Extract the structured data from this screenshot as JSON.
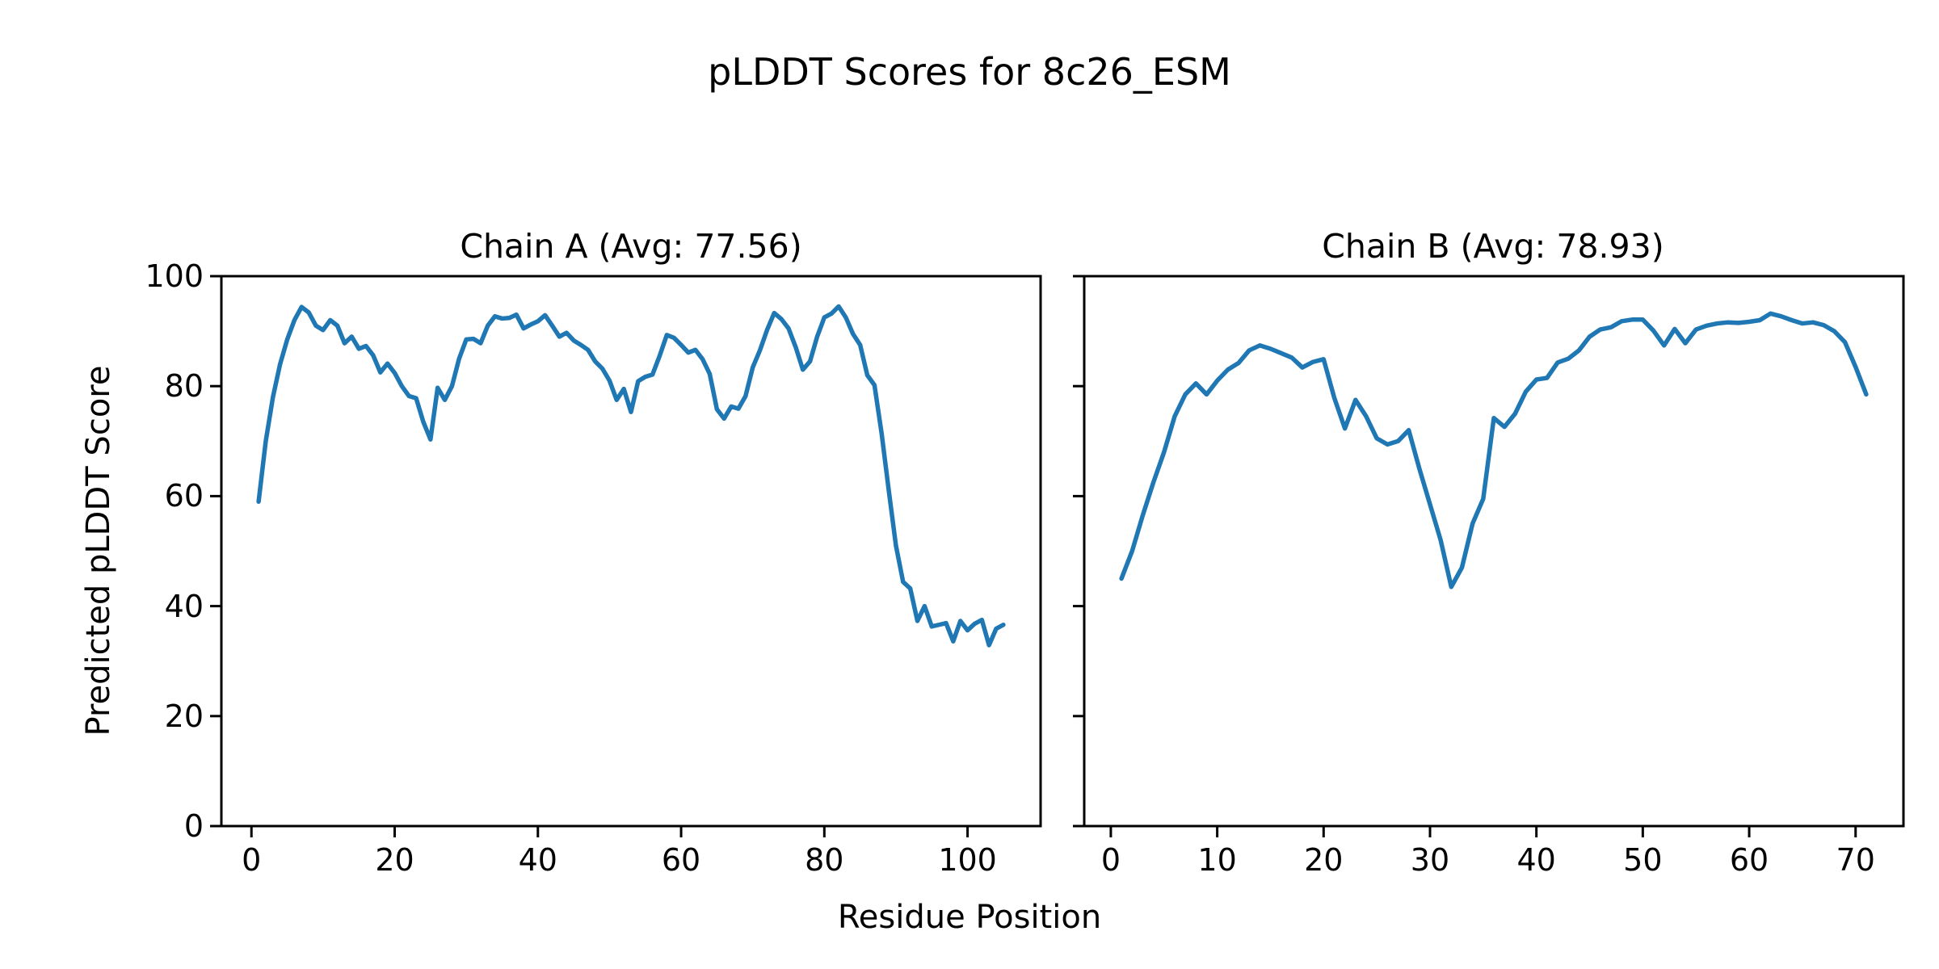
{
  "figure": {
    "title": "pLDDT Scores for 8c26_ESM",
    "xlabel": "Residue Position",
    "ylabel": "Predicted pLDDT Score",
    "background": "#ffffff",
    "text_color": "#000000",
    "line_color": "#1f77b4"
  },
  "chart_data": [
    {
      "type": "line",
      "name": "Chain A",
      "title": "Chain A (Avg: 77.56)",
      "avg_label": 77.56,
      "color": "#1f77b4",
      "x_start": 1,
      "xlim": [
        -4.2,
        110.2
      ],
      "ylim": [
        0,
        100
      ],
      "xticks": [
        0,
        20,
        40,
        60,
        80,
        100
      ],
      "yticks": [
        0,
        20,
        40,
        60,
        80,
        100
      ],
      "y_tick_labels_visible": true,
      "xlabel": "",
      "ylabel": "Predicted pLDDT Score",
      "grid": false,
      "values": [
        59,
        70,
        78,
        84,
        88.5,
        92,
        94.4,
        93.4,
        91,
        90.2,
        92,
        91,
        87.8,
        89,
        86.8,
        87.3,
        85.6,
        82.5,
        84.1,
        82.4,
        80,
        78.2,
        77.8,
        73.5,
        70.3,
        79.7,
        77.5,
        80,
        85,
        88.5,
        88.6,
        87.8,
        91,
        92.7,
        92.3,
        92.4,
        93,
        90.5,
        91.2,
        91.8,
        92.9,
        91,
        89,
        89.7,
        88.3,
        87.5,
        86.6,
        84.5,
        83.2,
        81,
        77.5,
        79.5,
        75.3,
        80.9,
        81.7,
        82.1,
        85.5,
        89.3,
        88.8,
        87.5,
        86.1,
        86.6,
        84.9,
        82.2,
        75.8,
        74.1,
        76.3,
        75.9,
        78.2,
        83.4,
        86.5,
        90.2,
        93.3,
        92.2,
        90.5,
        87.1,
        83,
        84.5,
        89,
        92.5,
        93.2,
        94.5,
        92.5,
        89.5,
        87.5,
        82,
        80.2,
        71.4,
        61,
        51,
        44.4,
        43.2,
        37.3,
        40,
        36.3,
        36.6,
        36.9,
        33.6,
        37.3,
        35.6,
        36.8,
        37.5,
        32.9,
        35.9,
        36.6
      ]
    },
    {
      "type": "line",
      "name": "Chain B",
      "title": "Chain B (Avg: 78.93)",
      "avg_label": 78.93,
      "color": "#1f77b4",
      "x_start": 1,
      "xlim": [
        -2.5,
        74.5
      ],
      "ylim": [
        0,
        100
      ],
      "xticks": [
        0,
        10,
        20,
        30,
        40,
        50,
        60,
        70
      ],
      "yticks": [
        0,
        20,
        40,
        60,
        80,
        100
      ],
      "y_tick_labels_visible": false,
      "xlabel": "",
      "ylabel": "",
      "grid": false,
      "values": [
        45,
        50,
        56.5,
        62.5,
        68,
        74.5,
        78.5,
        80.5,
        78.5,
        81,
        83,
        84.2,
        86.5,
        87.4,
        86.8,
        86,
        85.2,
        83.4,
        84.4,
        84.9,
        77.9,
        72.3,
        77.5,
        74.5,
        70.5,
        69.4,
        70,
        72,
        65,
        58.5,
        52,
        43.5,
        47,
        55,
        59.5,
        74.2,
        72.6,
        75,
        79,
        81.2,
        81.5,
        84.3,
        85,
        86.5,
        89,
        90.3,
        90.7,
        91.8,
        92.1,
        92.1,
        90.1,
        87.4,
        90.4,
        87.8,
        90.3,
        91,
        91.4,
        91.6,
        91.5,
        91.7,
        92,
        93.2,
        92.7,
        92,
        91.4,
        91.6,
        91.1,
        90,
        88,
        83.5,
        78.5
      ]
    }
  ]
}
